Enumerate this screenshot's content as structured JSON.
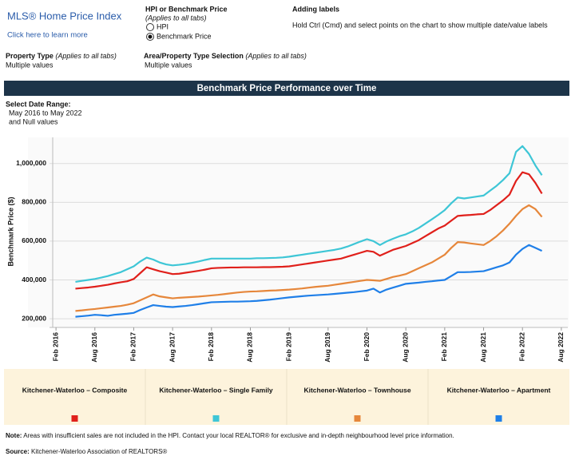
{
  "header": {
    "title": "MLS® Home Price Index",
    "link": "Click here to learn more",
    "measure_title": "HPI or Benchmark Price",
    "measure_note": "(Applies to all tabs)",
    "measure_options": [
      "HPI",
      "Benchmark Price"
    ],
    "labels_title": "Adding labels",
    "labels_text": "Hold Ctrl (Cmd) and select points on the chart to show multiple date/value labels",
    "property_type_title": "Property Type",
    "property_type_note": "(Applies to all tabs)",
    "property_type_value": "Multiple values",
    "area_title": "Area/Property Type Selection",
    "area_note": "(Applies to all tabs)",
    "area_value": "Multiple values",
    "date_range_title": "Select Date Range:",
    "date_range_value": "May 2016 to May 2022",
    "date_range_extra": "and Null values"
  },
  "chart_data": {
    "type": "line",
    "title": "Benchmark Price Performance over Time",
    "y_label": "Benchmark Price ($)",
    "x": [
      "2016-05",
      "2016-06",
      "2016-07",
      "2016-08",
      "2016-09",
      "2016-10",
      "2016-11",
      "2016-12",
      "2017-01",
      "2017-02",
      "2017-03",
      "2017-04",
      "2017-05",
      "2017-06",
      "2017-07",
      "2017-08",
      "2017-09",
      "2017-10",
      "2017-11",
      "2017-12",
      "2018-01",
      "2018-02",
      "2018-03",
      "2018-04",
      "2018-05",
      "2018-06",
      "2018-07",
      "2018-08",
      "2018-09",
      "2018-10",
      "2018-11",
      "2018-12",
      "2019-01",
      "2019-02",
      "2019-03",
      "2019-04",
      "2019-05",
      "2019-06",
      "2019-07",
      "2019-08",
      "2019-09",
      "2019-10",
      "2019-11",
      "2019-12",
      "2020-01",
      "2020-02",
      "2020-03",
      "2020-04",
      "2020-05",
      "2020-06",
      "2020-07",
      "2020-08",
      "2020-09",
      "2020-10",
      "2020-11",
      "2020-12",
      "2021-01",
      "2021-02",
      "2021-03",
      "2021-04",
      "2021-05",
      "2021-06",
      "2021-07",
      "2021-08",
      "2021-09",
      "2021-10",
      "2021-11",
      "2021-12",
      "2022-01",
      "2022-02",
      "2022-03",
      "2022-04",
      "2022-05"
    ],
    "series": [
      {
        "name": "Kitchener-Waterloo – Composite",
        "color": "#e0201b",
        "values": [
          355000,
          358000,
          361000,
          365000,
          370000,
          375000,
          382000,
          388000,
          393000,
          405000,
          435000,
          465000,
          455000,
          445000,
          438000,
          430000,
          432000,
          437000,
          442000,
          447000,
          453000,
          460000,
          462000,
          463000,
          464000,
          464000,
          465000,
          465000,
          465000,
          466000,
          466000,
          467000,
          468000,
          470000,
          475000,
          480000,
          485000,
          490000,
          495000,
          500000,
          505000,
          510000,
          520000,
          530000,
          540000,
          550000,
          545000,
          525000,
          540000,
          555000,
          565000,
          575000,
          590000,
          605000,
          625000,
          645000,
          665000,
          680000,
          705000,
          730000,
          733000,
          735000,
          738000,
          740000,
          760000,
          785000,
          810000,
          840000,
          910000,
          955000,
          945000,
          900000,
          845000
        ]
      },
      {
        "name": "Kitchener-Waterloo – Single Family",
        "color": "#3ec6d6",
        "values": [
          390000,
          395000,
          400000,
          405000,
          412000,
          420000,
          430000,
          440000,
          455000,
          470000,
          495000,
          515000,
          505000,
          490000,
          480000,
          475000,
          478000,
          482000,
          488000,
          495000,
          503000,
          510000,
          510000,
          510000,
          510000,
          510000,
          510000,
          510000,
          512000,
          512000,
          513000,
          514000,
          516000,
          520000,
          525000,
          530000,
          535000,
          540000,
          545000,
          550000,
          555000,
          562000,
          572000,
          585000,
          598000,
          610000,
          600000,
          580000,
          598000,
          612000,
          625000,
          635000,
          650000,
          668000,
          690000,
          712000,
          735000,
          760000,
          795000,
          825000,
          820000,
          825000,
          830000,
          835000,
          860000,
          885000,
          915000,
          950000,
          1060000,
          1090000,
          1050000,
          990000,
          940000
        ]
      },
      {
        "name": "Kitchener-Waterloo – Townhouse",
        "color": "#e6873b",
        "values": [
          240000,
          243000,
          247000,
          250000,
          254000,
          258000,
          262000,
          266000,
          272000,
          280000,
          295000,
          310000,
          325000,
          315000,
          310000,
          305000,
          308000,
          310000,
          312000,
          314000,
          317000,
          320000,
          323000,
          327000,
          331000,
          335000,
          338000,
          340000,
          341000,
          343000,
          345000,
          346000,
          348000,
          350000,
          353000,
          356000,
          360000,
          364000,
          367000,
          370000,
          375000,
          380000,
          385000,
          390000,
          395000,
          400000,
          398000,
          395000,
          405000,
          415000,
          422000,
          430000,
          445000,
          460000,
          475000,
          490000,
          510000,
          530000,
          565000,
          595000,
          593000,
          588000,
          584000,
          580000,
          600000,
          625000,
          655000,
          690000,
          730000,
          765000,
          785000,
          765000,
          725000
        ]
      },
      {
        "name": "Kitchener-Waterloo – Apartment",
        "color": "#1f7fe8",
        "values": [
          210000,
          213000,
          216000,
          220000,
          218000,
          215000,
          220000,
          223000,
          226000,
          230000,
          245000,
          258000,
          270000,
          266000,
          262000,
          260000,
          263000,
          266000,
          270000,
          275000,
          280000,
          285000,
          286000,
          287000,
          288000,
          288000,
          289000,
          290000,
          292000,
          295000,
          298000,
          302000,
          306000,
          310000,
          313000,
          316000,
          319000,
          321000,
          323000,
          325000,
          328000,
          331000,
          334000,
          337000,
          341000,
          345000,
          355000,
          335000,
          350000,
          360000,
          370000,
          380000,
          383000,
          386000,
          390000,
          393000,
          397000,
          400000,
          420000,
          440000,
          440000,
          441000,
          443000,
          445000,
          455000,
          465000,
          475000,
          490000,
          530000,
          560000,
          580000,
          565000,
          550000
        ]
      }
    ],
    "xlim": [
      "2016-01",
      "2022-09"
    ],
    "xticks": [
      {
        "value": "2016-02",
        "label": "Feb 2016"
      },
      {
        "value": "2016-08",
        "label": "Aug 2016"
      },
      {
        "value": "2017-02",
        "label": "Feb 2017"
      },
      {
        "value": "2017-08",
        "label": "Aug 2017"
      },
      {
        "value": "2018-02",
        "label": "Feb 2018"
      },
      {
        "value": "2018-08",
        "label": "Aug 2018"
      },
      {
        "value": "2019-02",
        "label": "Feb 2019"
      },
      {
        "value": "2019-08",
        "label": "Aug 2019"
      },
      {
        "value": "2020-02",
        "label": "Feb 2020"
      },
      {
        "value": "2020-08",
        "label": "Aug 2020"
      },
      {
        "value": "2021-02",
        "label": "Feb 2021"
      },
      {
        "value": "2021-08",
        "label": "Aug 2021"
      },
      {
        "value": "2022-02",
        "label": "Feb 2022"
      },
      {
        "value": "2022-08",
        "label": "Aug 2022"
      }
    ],
    "ylim": [
      155000,
      1135000
    ],
    "yticks": [
      {
        "value": 200000,
        "label": "200,000"
      },
      {
        "value": 400000,
        "label": "400,000"
      },
      {
        "value": 600000,
        "label": "600,000"
      },
      {
        "value": 800000,
        "label": "800,000"
      },
      {
        "value": 1000000,
        "label": "1,000,000"
      }
    ],
    "grid": true
  },
  "footer": {
    "note_label": "Note:",
    "note_text": "Areas with insufficient sales are not included in the HPI. Contact your local REALTOR® for exclusive and in-depth neighbourhood level price information.",
    "source_label": "Source:",
    "source_text": "Kitchener-Waterloo Association of REALTORS®"
  }
}
